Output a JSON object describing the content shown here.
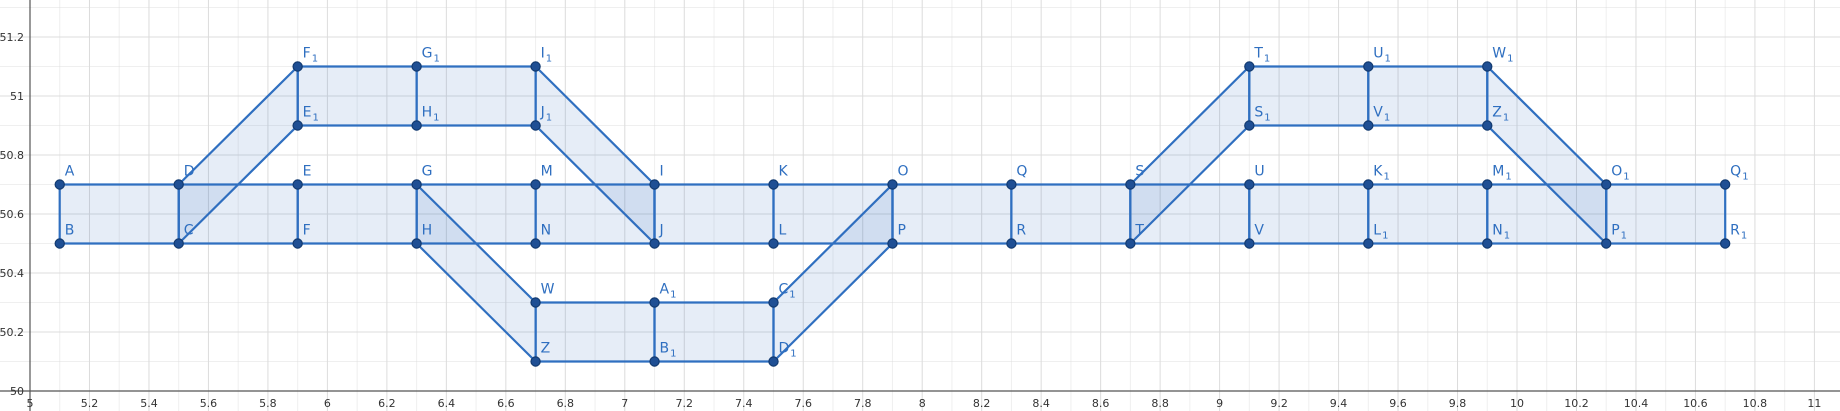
{
  "chart_data": {
    "type": "scatter",
    "title": "",
    "xlabel": "",
    "ylabel": "",
    "xlim": [
      5,
      11.1
    ],
    "ylim": [
      50,
      51.3
    ],
    "grid": true,
    "colors": {
      "stroke": "#2f6fc0",
      "fill": "#2f6fc0",
      "point": "#1f4f94",
      "label": "#2f6fc0"
    },
    "x_ticks": [
      "5",
      "5.2",
      "5.4",
      "5.6",
      "5.8",
      "6",
      "6.2",
      "6.4",
      "6.6",
      "6.8",
      "7",
      "7.2",
      "7.4",
      "7.6",
      "7.8",
      "8",
      "8.2",
      "8.4",
      "8.6",
      "8.8",
      "9",
      "9.2",
      "9.4",
      "9.6",
      "9.8",
      "10",
      "10.2",
      "10.4",
      "10.6",
      "10.8",
      "11"
    ],
    "y_ticks": [
      "50",
      "50.2",
      "50.4",
      "50.6",
      "50.8",
      "51",
      "51.2"
    ],
    "points": [
      {
        "name": "A",
        "sub": "",
        "x": 5.1,
        "y": 50.7
      },
      {
        "name": "B",
        "sub": "",
        "x": 5.1,
        "y": 50.5
      },
      {
        "name": "C",
        "sub": "",
        "x": 5.5,
        "y": 50.5
      },
      {
        "name": "D",
        "sub": "",
        "x": 5.5,
        "y": 50.7
      },
      {
        "name": "E",
        "sub": "",
        "x": 5.9,
        "y": 50.7
      },
      {
        "name": "F",
        "sub": "",
        "x": 5.9,
        "y": 50.5
      },
      {
        "name": "G",
        "sub": "",
        "x": 6.3,
        "y": 50.7
      },
      {
        "name": "H",
        "sub": "",
        "x": 6.3,
        "y": 50.5
      },
      {
        "name": "M",
        "sub": "",
        "x": 6.7,
        "y": 50.7
      },
      {
        "name": "N",
        "sub": "",
        "x": 6.7,
        "y": 50.5
      },
      {
        "name": "I",
        "sub": "",
        "x": 7.1,
        "y": 50.7
      },
      {
        "name": "J",
        "sub": "",
        "x": 7.1,
        "y": 50.5
      },
      {
        "name": "K",
        "sub": "",
        "x": 7.5,
        "y": 50.7
      },
      {
        "name": "L",
        "sub": "",
        "x": 7.5,
        "y": 50.5
      },
      {
        "name": "O",
        "sub": "",
        "x": 7.9,
        "y": 50.7
      },
      {
        "name": "P",
        "sub": "",
        "x": 7.9,
        "y": 50.5
      },
      {
        "name": "Q",
        "sub": "",
        "x": 8.3,
        "y": 50.7
      },
      {
        "name": "R",
        "sub": "",
        "x": 8.3,
        "y": 50.5
      },
      {
        "name": "S",
        "sub": "",
        "x": 8.7,
        "y": 50.7
      },
      {
        "name": "T",
        "sub": "",
        "x": 8.7,
        "y": 50.5
      },
      {
        "name": "U",
        "sub": "",
        "x": 9.1,
        "y": 50.7
      },
      {
        "name": "V",
        "sub": "",
        "x": 9.1,
        "y": 50.5
      },
      {
        "name": "K",
        "sub": "1",
        "x": 9.5,
        "y": 50.7
      },
      {
        "name": "L",
        "sub": "1",
        "x": 9.5,
        "y": 50.5
      },
      {
        "name": "M",
        "sub": "1",
        "x": 9.9,
        "y": 50.7
      },
      {
        "name": "N",
        "sub": "1",
        "x": 9.9,
        "y": 50.5
      },
      {
        "name": "O",
        "sub": "1",
        "x": 10.3,
        "y": 50.7
      },
      {
        "name": "P",
        "sub": "1",
        "x": 10.3,
        "y": 50.5
      },
      {
        "name": "Q",
        "sub": "1",
        "x": 10.7,
        "y": 50.7
      },
      {
        "name": "R",
        "sub": "1",
        "x": 10.7,
        "y": 50.5
      },
      {
        "name": "F",
        "sub": "1",
        "x": 5.9,
        "y": 51.1
      },
      {
        "name": "E",
        "sub": "1",
        "x": 5.9,
        "y": 50.9
      },
      {
        "name": "G",
        "sub": "1",
        "x": 6.3,
        "y": 51.1
      },
      {
        "name": "H",
        "sub": "1",
        "x": 6.3,
        "y": 50.9
      },
      {
        "name": "I",
        "sub": "1",
        "x": 6.7,
        "y": 51.1
      },
      {
        "name": "J",
        "sub": "1",
        "x": 6.7,
        "y": 50.9
      },
      {
        "name": "W",
        "sub": "",
        "x": 6.7,
        "y": 50.3
      },
      {
        "name": "Z",
        "sub": "",
        "x": 6.7,
        "y": 50.1
      },
      {
        "name": "A",
        "sub": "1",
        "x": 7.1,
        "y": 50.3
      },
      {
        "name": "B",
        "sub": "1",
        "x": 7.1,
        "y": 50.1
      },
      {
        "name": "C",
        "sub": "1",
        "x": 7.5,
        "y": 50.3
      },
      {
        "name": "D",
        "sub": "1",
        "x": 7.5,
        "y": 50.1
      },
      {
        "name": "T",
        "sub": "1",
        "x": 9.1,
        "y": 51.1
      },
      {
        "name": "S",
        "sub": "1",
        "x": 9.1,
        "y": 50.9
      },
      {
        "name": "U",
        "sub": "1",
        "x": 9.5,
        "y": 51.1
      },
      {
        "name": "V",
        "sub": "1",
        "x": 9.5,
        "y": 50.9
      },
      {
        "name": "W",
        "sub": "1",
        "x": 9.9,
        "y": 51.1
      },
      {
        "name": "Z",
        "sub": "1",
        "x": 9.9,
        "y": 50.9
      }
    ],
    "polygons": [
      [
        [
          5.1,
          50.7
        ],
        [
          5.5,
          50.7
        ],
        [
          5.5,
          50.5
        ],
        [
          5.1,
          50.5
        ]
      ],
      [
        [
          5.5,
          50.7
        ],
        [
          5.5,
          50.5
        ],
        [
          5.9,
          50.9
        ],
        [
          5.9,
          51.1
        ]
      ],
      [
        [
          5.9,
          51.1
        ],
        [
          6.3,
          51.1
        ],
        [
          6.3,
          50.9
        ],
        [
          5.9,
          50.9
        ]
      ],
      [
        [
          6.3,
          51.1
        ],
        [
          6.7,
          51.1
        ],
        [
          6.7,
          50.9
        ],
        [
          6.3,
          50.9
        ]
      ],
      [
        [
          6.7,
          51.1
        ],
        [
          6.7,
          50.9
        ],
        [
          7.1,
          50.5
        ],
        [
          7.1,
          50.7
        ]
      ],
      [
        [
          5.5,
          50.7
        ],
        [
          5.9,
          50.7
        ],
        [
          5.9,
          50.5
        ],
        [
          5.5,
          50.5
        ]
      ],
      [
        [
          5.9,
          50.7
        ],
        [
          6.3,
          50.7
        ],
        [
          6.3,
          50.5
        ],
        [
          5.9,
          50.5
        ]
      ],
      [
        [
          6.3,
          50.7
        ],
        [
          6.7,
          50.7
        ],
        [
          6.7,
          50.5
        ],
        [
          6.3,
          50.5
        ]
      ],
      [
        [
          6.7,
          50.7
        ],
        [
          7.1,
          50.7
        ],
        [
          7.1,
          50.5
        ],
        [
          6.7,
          50.5
        ]
      ],
      [
        [
          6.3,
          50.7
        ],
        [
          6.3,
          50.5
        ],
        [
          6.7,
          50.1
        ],
        [
          6.7,
          50.3
        ]
      ],
      [
        [
          6.7,
          50.3
        ],
        [
          7.1,
          50.3
        ],
        [
          7.1,
          50.1
        ],
        [
          6.7,
          50.1
        ]
      ],
      [
        [
          7.1,
          50.3
        ],
        [
          7.5,
          50.3
        ],
        [
          7.5,
          50.1
        ],
        [
          7.1,
          50.1
        ]
      ],
      [
        [
          7.5,
          50.3
        ],
        [
          7.5,
          50.1
        ],
        [
          7.9,
          50.5
        ],
        [
          7.9,
          50.7
        ]
      ],
      [
        [
          7.1,
          50.7
        ],
        [
          7.5,
          50.7
        ],
        [
          7.5,
          50.5
        ],
        [
          7.1,
          50.5
        ]
      ],
      [
        [
          7.5,
          50.7
        ],
        [
          7.9,
          50.7
        ],
        [
          7.9,
          50.5
        ],
        [
          7.5,
          50.5
        ]
      ],
      [
        [
          7.9,
          50.7
        ],
        [
          8.3,
          50.7
        ],
        [
          8.3,
          50.5
        ],
        [
          7.9,
          50.5
        ]
      ],
      [
        [
          8.3,
          50.7
        ],
        [
          8.7,
          50.7
        ],
        [
          8.7,
          50.5
        ],
        [
          8.3,
          50.5
        ]
      ],
      [
        [
          8.7,
          50.7
        ],
        [
          8.7,
          50.5
        ],
        [
          9.1,
          50.9
        ],
        [
          9.1,
          51.1
        ]
      ],
      [
        [
          9.1,
          51.1
        ],
        [
          9.5,
          51.1
        ],
        [
          9.5,
          50.9
        ],
        [
          9.1,
          50.9
        ]
      ],
      [
        [
          9.5,
          51.1
        ],
        [
          9.9,
          51.1
        ],
        [
          9.9,
          50.9
        ],
        [
          9.5,
          50.9
        ]
      ],
      [
        [
          9.9,
          51.1
        ],
        [
          9.9,
          50.9
        ],
        [
          10.3,
          50.5
        ],
        [
          10.3,
          50.7
        ]
      ],
      [
        [
          8.7,
          50.7
        ],
        [
          9.1,
          50.7
        ],
        [
          9.1,
          50.5
        ],
        [
          8.7,
          50.5
        ]
      ],
      [
        [
          9.1,
          50.7
        ],
        [
          9.5,
          50.7
        ],
        [
          9.5,
          50.5
        ],
        [
          9.1,
          50.5
        ]
      ],
      [
        [
          9.5,
          50.7
        ],
        [
          9.9,
          50.7
        ],
        [
          9.9,
          50.5
        ],
        [
          9.5,
          50.5
        ]
      ],
      [
        [
          9.9,
          50.7
        ],
        [
          10.3,
          50.7
        ],
        [
          10.3,
          50.5
        ],
        [
          9.9,
          50.5
        ]
      ],
      [
        [
          10.3,
          50.7
        ],
        [
          10.7,
          50.7
        ],
        [
          10.7,
          50.5
        ],
        [
          10.3,
          50.5
        ]
      ]
    ]
  }
}
